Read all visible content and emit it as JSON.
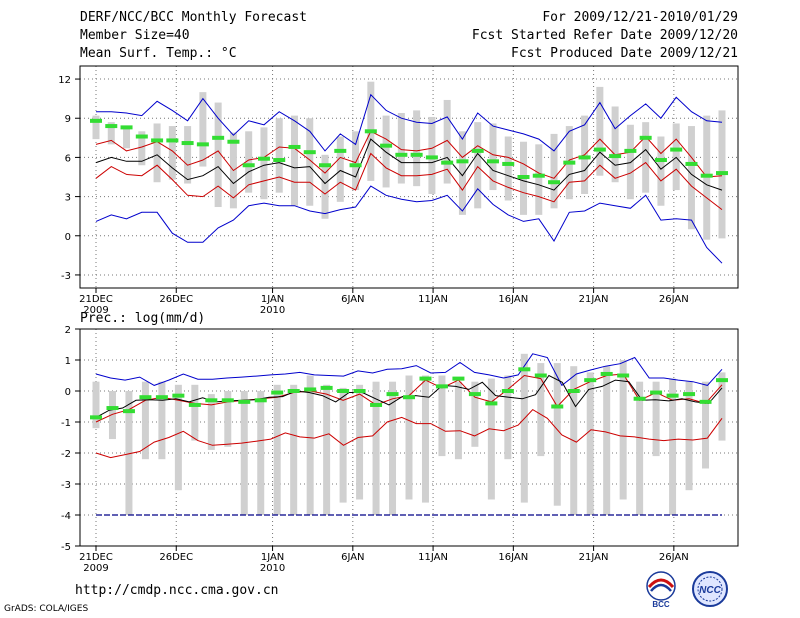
{
  "header": {
    "title": "DERF/NCC/BCC Monthly Forecast",
    "member": "Member Size=40",
    "variable": "Mean Surf. Temp.: °C",
    "period": "For 2009/12/21-2010/01/29",
    "started": "Fcst Started Refer Date 2009/12/20",
    "produced": "Fcst Produced Date 2009/12/21"
  },
  "footer": {
    "url": "http://cmdp.ncc.cma.gov.cn",
    "credit": "GrADS: COLA/IGES"
  },
  "logos": {
    "bcc": "BCC",
    "ncc": "NCC"
  },
  "colors": {
    "mean": "#000000",
    "inner": "#cc0000",
    "outer": "#0000cc",
    "obs": "#33dd33",
    "box": "#d0d0d0",
    "dry": "#000088"
  },
  "chart_data": [
    {
      "type": "line",
      "title": "Mean Surf. Temp.: °C",
      "xlabel": "",
      "ylabel": "",
      "ylim": [
        -4,
        13
      ],
      "yticks": [
        -3,
        0,
        3,
        6,
        9,
        12
      ],
      "xlim": [
        0,
        39
      ],
      "xticks": [
        {
          "i": 0,
          "label": "21DEC",
          "sub": "2009"
        },
        {
          "i": 5,
          "label": "26DEC"
        },
        {
          "i": 11,
          "label": "1JAN",
          "sub": "2010"
        },
        {
          "i": 16,
          "label": "6JAN"
        },
        {
          "i": 21,
          "label": "11JAN"
        },
        {
          "i": 26,
          "label": "16JAN"
        },
        {
          "i": 31,
          "label": "21JAN"
        },
        {
          "i": 36,
          "label": "26JAN"
        }
      ],
      "series": [
        {
          "name": "max",
          "values": [
            9.5,
            9.5,
            9.4,
            9.2,
            10.3,
            9.6,
            8.8,
            10.5,
            9.0,
            7.7,
            8.8,
            8.5,
            9.5,
            8.8,
            8.0,
            6.5,
            7.8,
            7.0,
            10.8,
            9.6,
            9.0,
            8.7,
            8.6,
            9.1,
            7.4,
            9.4,
            8.4,
            8.1,
            7.8,
            7.4,
            6.5,
            8.0,
            8.5,
            10.2,
            8.2,
            9.2,
            10.1,
            9.0,
            10.6,
            9.5,
            8.8,
            8.7
          ]
        },
        {
          "name": "p75",
          "values": [
            7.0,
            7.3,
            6.5,
            6.8,
            7.2,
            6.5,
            5.4,
            5.8,
            6.5,
            5.0,
            5.8,
            6.0,
            6.8,
            6.7,
            5.8,
            4.8,
            6.0,
            5.6,
            8.0,
            7.4,
            6.6,
            6.5,
            6.7,
            7.3,
            6.0,
            6.9,
            6.2,
            6.0,
            5.5,
            4.8,
            4.4,
            5.8,
            6.2,
            7.4,
            6.2,
            6.4,
            7.6,
            6.3,
            7.4,
            6.0,
            4.5,
            4.6
          ]
        },
        {
          "name": "mean",
          "values": [
            5.6,
            6.0,
            5.7,
            5.7,
            6.2,
            5.2,
            4.3,
            4.6,
            5.3,
            4.0,
            4.9,
            5.4,
            5.6,
            5.2,
            5.3,
            4.0,
            5.0,
            4.5,
            7.4,
            6.4,
            5.6,
            5.6,
            5.6,
            6.0,
            4.6,
            6.3,
            5.0,
            4.6,
            4.2,
            3.9,
            3.5,
            4.7,
            5.0,
            6.4,
            5.4,
            5.6,
            6.6,
            5.1,
            6.0,
            4.7,
            3.9,
            3.5
          ]
        },
        {
          "name": "p25",
          "values": [
            4.4,
            5.3,
            4.7,
            4.6,
            5.4,
            4.3,
            3.1,
            3.0,
            3.8,
            2.9,
            3.9,
            4.2,
            4.5,
            4.1,
            4.1,
            3.2,
            4.1,
            3.5,
            6.3,
            5.2,
            4.6,
            4.6,
            4.7,
            5.1,
            3.5,
            5.3,
            4.2,
            3.7,
            3.3,
            3.0,
            2.6,
            4.1,
            4.2,
            5.4,
            4.4,
            4.8,
            5.6,
            4.2,
            5.1,
            3.8,
            2.9,
            2.0
          ]
        },
        {
          "name": "min",
          "values": [
            1.1,
            1.6,
            1.3,
            1.8,
            1.8,
            0.2,
            -0.5,
            -0.5,
            0.6,
            1.2,
            2.3,
            2.5,
            2.3,
            2.3,
            1.9,
            1.7,
            2.0,
            2.2,
            3.8,
            3.1,
            2.8,
            2.6,
            2.7,
            3.1,
            1.9,
            3.6,
            2.4,
            1.6,
            1.1,
            1.3,
            -0.4,
            1.8,
            1.9,
            2.5,
            2.3,
            2.1,
            3.1,
            1.2,
            1.3,
            1.2,
            -0.9,
            -2.1
          ]
        },
        {
          "name": "obs",
          "values": [
            8.8,
            8.4,
            8.3,
            7.6,
            7.3,
            7.3,
            7.1,
            7.0,
            7.5,
            7.2,
            5.4,
            5.9,
            5.8,
            6.8,
            6.4,
            5.4,
            6.5,
            5.4,
            8.0,
            6.9,
            6.2,
            6.2,
            6.0,
            5.6,
            5.7,
            6.5,
            5.7,
            5.5,
            4.5,
            4.6,
            4.1,
            5.6,
            6.0,
            6.6,
            6.1,
            6.5,
            7.5,
            5.8,
            6.6,
            5.5,
            4.6,
            4.8
          ]
        },
        {
          "name": "range_lo",
          "values": [
            7.4,
            7.0,
            6.7,
            5.4,
            4.1,
            4.3,
            4.0,
            5.3,
            2.2,
            2.1,
            3.3,
            2.8,
            3.3,
            2.3,
            2.3,
            1.3,
            2.6,
            3.5,
            4.2,
            3.7,
            4.0,
            3.8,
            3.2,
            4.0,
            1.6,
            2.1,
            3.5,
            2.7,
            1.6,
            1.6,
            2.1,
            2.8,
            3.2,
            4.6,
            4.1,
            2.8,
            3.3,
            2.3,
            3.5,
            0.5,
            -0.3,
            -0.2
          ]
        },
        {
          "name": "range_hi",
          "values": [
            9.2,
            8.7,
            8.3,
            8.0,
            8.6,
            8.4,
            8.4,
            11.0,
            10.2,
            7.9,
            8.0,
            8.3,
            9.0,
            9.2,
            9.0,
            6.2,
            7.6,
            8.0,
            11.8,
            9.2,
            9.4,
            9.6,
            9.1,
            10.4,
            8.0,
            8.7,
            8.6,
            7.6,
            7.2,
            7.0,
            7.8,
            8.4,
            9.2,
            11.4,
            9.9,
            8.5,
            8.7,
            7.6,
            8.6,
            8.4,
            9.2,
            9.6
          ]
        }
      ]
    },
    {
      "type": "line",
      "title": "Prec.: log(mm/d)",
      "xlabel": "",
      "ylabel": "",
      "ylim": [
        -5,
        2
      ],
      "yticks": [
        -5,
        -4,
        -3,
        -2,
        -1,
        0,
        1,
        2
      ],
      "xlim": [
        0,
        39
      ],
      "xticks": [
        {
          "i": 0,
          "label": "21DEC",
          "sub": "2009"
        },
        {
          "i": 5,
          "label": "26DEC"
        },
        {
          "i": 11,
          "label": "1JAN",
          "sub": "2010"
        },
        {
          "i": 16,
          "label": "6JAN"
        },
        {
          "i": 21,
          "label": "11JAN"
        },
        {
          "i": 26,
          "label": "16JAN"
        },
        {
          "i": 31,
          "label": "21JAN"
        },
        {
          "i": 36,
          "label": "26JAN"
        }
      ],
      "series": [
        {
          "name": "max",
          "values": [
            0.55,
            0.42,
            0.35,
            0.45,
            0.18,
            0.35,
            0.55,
            0.38,
            0.38,
            0.42,
            0.45,
            0.48,
            0.52,
            0.55,
            0.6,
            0.52,
            0.5,
            0.48,
            0.65,
            0.58,
            0.7,
            0.72,
            0.82,
            0.58,
            0.6,
            0.92,
            0.6,
            0.52,
            0.42,
            0.52,
            1.2,
            1.08,
            0.18,
            0.55,
            0.68,
            0.8,
            0.88,
            1.08,
            0.42,
            0.42,
            0.35,
            0.3,
            0.18,
            0.7
          ]
        },
        {
          "name": "mean",
          "values": [
            -0.85,
            -0.62,
            -0.55,
            -0.3,
            -0.28,
            -0.3,
            -0.25,
            -0.35,
            -0.22,
            -0.35,
            -0.32,
            -0.3,
            -0.28,
            -0.2,
            -0.18,
            0.0,
            -0.05,
            -0.15,
            -0.35,
            -0.05,
            -0.05,
            -0.25,
            -0.45,
            -0.18,
            -0.15,
            -0.2,
            0.18,
            0.15,
            0.05,
            0.28,
            -0.15,
            -0.2,
            -0.25,
            -0.12,
            0.5,
            0.28,
            -0.5,
            0.05,
            0.15,
            0.35,
            0.3,
            -0.3,
            -0.28,
            -0.32,
            -0.25,
            -0.35,
            -0.4,
            0.1
          ]
        },
        {
          "name": "p25",
          "values": [
            -2.0,
            -2.15,
            -2.05,
            -1.95,
            -1.65,
            -1.5,
            -1.3,
            -1.6,
            -1.75,
            -1.72,
            -1.68,
            -1.62,
            -1.55,
            -1.35,
            -1.48,
            -1.52,
            -1.38,
            -1.75,
            -1.5,
            -1.45,
            -1.0,
            -0.85,
            -1.05,
            -1.05,
            -1.3,
            -1.28,
            -1.45,
            -1.22,
            -1.28,
            -1.1,
            -0.6,
            -0.88,
            -1.42,
            -1.65,
            -1.25,
            -1.32,
            -1.45,
            -1.48,
            -1.55,
            -1.6,
            -1.55,
            -1.58,
            -1.52,
            -0.88
          ]
        },
        {
          "name": "obs",
          "values": [
            -0.85,
            -0.55,
            -0.65,
            -0.2,
            -0.2,
            -0.15,
            -0.45,
            -0.3,
            -0.3,
            -0.35,
            -0.3,
            -0.05,
            0.0,
            0.05,
            0.1,
            0.0,
            0.0,
            -0.45,
            -0.1,
            -0.2,
            0.4,
            0.15,
            0.4,
            -0.1,
            -0.4,
            0.0,
            0.7,
            0.5,
            -0.5,
            0.0,
            0.35,
            0.55,
            0.5,
            -0.25,
            -0.05,
            -0.15,
            -0.1,
            -0.35,
            0.35
          ]
        },
        {
          "name": "p75",
          "values": [
            -1.0,
            -0.75,
            -0.6,
            -0.3,
            -0.2,
            -0.3,
            -0.4,
            -0.45,
            -0.35,
            -0.3,
            -0.25,
            -0.2,
            -0.05,
            0.0,
            -0.1,
            -0.3,
            -0.1,
            -0.45,
            -0.25,
            -0.15,
            0.35,
            0.1,
            0.35,
            -0.2,
            -0.35,
            0.05,
            0.5,
            0.4,
            -0.5,
            0.05,
            0.3,
            0.5,
            0.55,
            -0.3,
            -0.05,
            -0.3,
            -0.25,
            -0.4,
            0.2
          ]
        },
        {
          "name": "dry_limit",
          "values": [
            -4.0
          ]
        },
        {
          "name": "range_lo",
          "values": [
            -1.2,
            -1.55,
            -4.0,
            -2.2,
            -2.2,
            -3.2,
            -1.6,
            -1.9,
            -1.8,
            -4.0,
            -4.0,
            -4.0,
            -4.0,
            -4.0,
            -4.0,
            -3.6,
            -3.5,
            -4.0,
            -4.0,
            -3.5,
            -3.6,
            -2.1,
            -2.2,
            -1.8,
            -3.5,
            -2.2,
            -3.6,
            -2.1,
            -3.7,
            -4.0,
            -4.0,
            -4.0,
            -3.5,
            -4.0,
            -2.1,
            -4.0,
            -3.2,
            -2.5,
            -1.6
          ]
        },
        {
          "name": "range_hi",
          "values": [
            0.3,
            0.0,
            0.0,
            0.3,
            0.3,
            0.2,
            0.2,
            -0.1,
            0.0,
            0.0,
            0.0,
            0.2,
            0.2,
            0.5,
            0.2,
            0.1,
            0.2,
            0.3,
            0.3,
            0.5,
            0.5,
            0.5,
            0.3,
            0.3,
            0.4,
            0.5,
            1.2,
            0.9,
            0.9,
            0.8,
            0.6,
            0.8,
            1.0,
            0.3,
            0.3,
            0.4,
            0.3,
            0.3,
            0.6
          ]
        }
      ]
    }
  ]
}
